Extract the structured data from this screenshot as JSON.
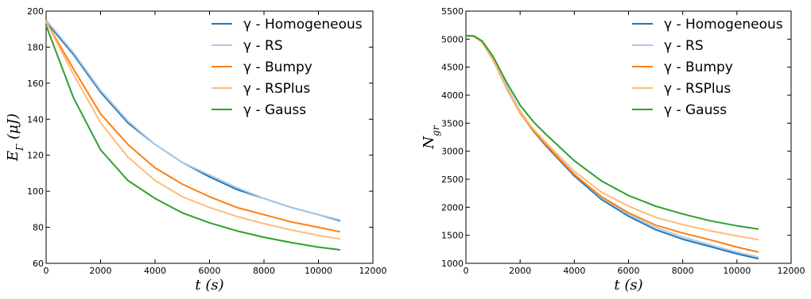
{
  "figure": {
    "legend_entries": [
      "γ - Homogeneous",
      "γ - RS",
      "γ - Bumpy",
      "γ - RSPlus",
      "γ - Gauss"
    ]
  },
  "colors": {
    "homogeneous": "#1f77b4",
    "rs": "#aec7e8",
    "bumpy": "#ff7f0e",
    "rsplus": "#ffbb78",
    "gauss": "#2ca02c"
  },
  "chart_data": [
    {
      "type": "line",
      "title": "",
      "xlabel": "t (s)",
      "ylabel": "E_Γ (μJ)",
      "xlim": [
        0,
        12000
      ],
      "ylim": [
        60,
        200
      ],
      "xticks": [
        0,
        2000,
        4000,
        6000,
        8000,
        10000,
        12000
      ],
      "yticks": [
        60,
        80,
        100,
        120,
        140,
        160,
        180,
        200
      ],
      "grid": false,
      "legend_position": "top-right",
      "x": [
        0,
        1000,
        2000,
        3000,
        4000,
        5000,
        6000,
        7000,
        8000,
        9000,
        10000,
        10800
      ],
      "series": [
        {
          "name": "γ - Homogeneous",
          "color": "#1f77b4",
          "values": [
            194,
            176,
            155,
            138,
            126,
            116,
            108,
            101,
            96,
            91,
            87,
            83.5
          ]
        },
        {
          "name": "γ - RS",
          "color": "#aec7e8",
          "values": [
            195,
            177,
            156,
            139,
            126,
            116,
            109,
            102,
            96,
            91,
            87,
            84
          ]
        },
        {
          "name": "γ - Bumpy",
          "color": "#ff7f0e",
          "values": [
            194,
            168,
            143,
            126,
            113,
            104,
            97,
            91,
            87,
            83,
            80,
            77.5
          ]
        },
        {
          "name": "γ - RSPlus",
          "color": "#ffbb78",
          "values": [
            194,
            165,
            138,
            119,
            106,
            97,
            91,
            86,
            82,
            78.5,
            75.5,
            73.5
          ]
        },
        {
          "name": "γ - Gauss",
          "color": "#2ca02c",
          "values": [
            192,
            152,
            123,
            106,
            96,
            88,
            82.5,
            78,
            74.5,
            71.5,
            69,
            67.5
          ]
        }
      ]
    },
    {
      "type": "line",
      "title": "",
      "xlabel": "t (s)",
      "ylabel": "N_gr",
      "xlim": [
        0,
        12000
      ],
      "ylim": [
        1000,
        5500
      ],
      "xticks": [
        0,
        2000,
        4000,
        6000,
        8000,
        10000,
        12000
      ],
      "yticks": [
        1000,
        1500,
        2000,
        2500,
        3000,
        3500,
        4000,
        4500,
        5000,
        5500
      ],
      "grid": false,
      "legend_position": "top-right",
      "x": [
        0,
        300,
        600,
        1000,
        1500,
        2000,
        2500,
        3000,
        4000,
        5000,
        6000,
        7000,
        8000,
        9000,
        10000,
        10800
      ],
      "series": [
        {
          "name": "γ - Homogeneous",
          "color": "#1f77b4",
          "values": [
            5060,
            5050,
            4950,
            4650,
            4150,
            3700,
            3350,
            3070,
            2560,
            2140,
            1840,
            1600,
            1430,
            1300,
            1170,
            1080
          ]
        },
        {
          "name": "γ - RS",
          "color": "#aec7e8",
          "values": [
            5060,
            5055,
            4960,
            4670,
            4170,
            3720,
            3380,
            3100,
            2590,
            2170,
            1870,
            1640,
            1470,
            1330,
            1200,
            1110
          ]
        },
        {
          "name": "γ - Bumpy",
          "color": "#ff7f0e",
          "values": [
            5060,
            5050,
            4940,
            4630,
            4120,
            3680,
            3360,
            3090,
            2580,
            2190,
            1900,
            1680,
            1540,
            1420,
            1290,
            1200
          ]
        },
        {
          "name": "γ - RSPlus",
          "color": "#ffbb78",
          "values": [
            5060,
            5050,
            4945,
            4640,
            4130,
            3700,
            3390,
            3130,
            2640,
            2270,
            2020,
            1820,
            1690,
            1580,
            1490,
            1420
          ]
        },
        {
          "name": "γ - Gauss",
          "color": "#2ca02c",
          "values": [
            5060,
            5055,
            4965,
            4690,
            4230,
            3820,
            3520,
            3280,
            2830,
            2470,
            2210,
            2020,
            1880,
            1760,
            1670,
            1610
          ]
        }
      ]
    }
  ]
}
